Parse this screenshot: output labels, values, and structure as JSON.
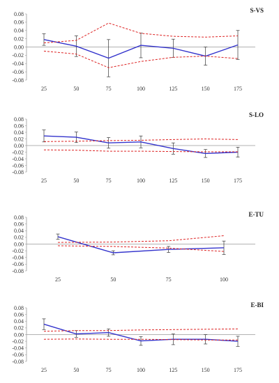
{
  "colors": {
    "mean_line": "#3333cc",
    "bounds": "#dd2222",
    "error_bar": "#333333",
    "axis": "#999999"
  },
  "chart_data": [
    {
      "type": "line",
      "title": "S-VS",
      "x": [
        25,
        50,
        75,
        100,
        125,
        150,
        175
      ],
      "ylim": [
        -0.08,
        0.08
      ],
      "yticks": [
        "0.08",
        "0.06",
        "0.04",
        "0.02",
        "0.00",
        "-0.02",
        "-0.04",
        "-0.06",
        "-0.08"
      ],
      "series": [
        {
          "role": "mean",
          "values": [
            0.018,
            0.002,
            -0.027,
            0.004,
            -0.003,
            -0.022,
            0.005
          ],
          "errors": [
            0.014,
            0.025,
            0.045,
            0.03,
            0.022,
            0.022,
            0.035
          ]
        },
        {
          "role": "upper",
          "values": [
            0.01,
            0.016,
            0.058,
            0.033,
            0.026,
            0.024,
            0.027
          ]
        },
        {
          "role": "lower",
          "values": [
            -0.01,
            -0.017,
            -0.05,
            -0.035,
            -0.025,
            -0.022,
            -0.028
          ]
        }
      ]
    },
    {
      "type": "line",
      "title": "S-LO",
      "x": [
        25,
        50,
        75,
        100,
        125,
        150,
        175
      ],
      "ylim": [
        -0.08,
        0.08
      ],
      "yticks": [
        "0.08",
        "0.06",
        "0.04",
        "0.02",
        "0.00",
        "-0.02",
        "-0.04",
        "-0.06",
        "-0.08"
      ],
      "series": [
        {
          "role": "mean",
          "values": [
            0.029,
            0.025,
            0.008,
            0.011,
            -0.009,
            -0.024,
            -0.02
          ],
          "errors": [
            0.018,
            0.016,
            0.016,
            0.018,
            0.017,
            0.012,
            0.015
          ]
        },
        {
          "role": "upper",
          "values": [
            0.012,
            0.013,
            0.015,
            0.016,
            0.018,
            0.02,
            0.018
          ]
        },
        {
          "role": "lower",
          "values": [
            -0.013,
            -0.014,
            -0.017,
            -0.017,
            -0.018,
            -0.019,
            -0.019
          ]
        }
      ]
    },
    {
      "type": "line",
      "title": "E-TU",
      "x": [
        25,
        50,
        75,
        100
      ],
      "ylim": [
        -0.08,
        0.08
      ],
      "yticks": [
        "0.08",
        "0.06",
        "0.04",
        "0.02",
        "0.00",
        "-0.02",
        "-0.04",
        "-0.06",
        "-0.08"
      ],
      "series": [
        {
          "role": "mean",
          "values": [
            0.022,
            -0.026,
            -0.016,
            -0.011
          ],
          "errors": [
            0.008,
            0.006,
            0.009,
            0.02
          ]
        },
        {
          "role": "upper",
          "values": [
            0.005,
            0.006,
            0.01,
            0.025
          ]
        },
        {
          "role": "lower",
          "values": [
            -0.005,
            -0.007,
            -0.012,
            -0.022
          ]
        }
      ]
    },
    {
      "type": "line",
      "title": "E-BI",
      "x": [
        25,
        50,
        75,
        100,
        125,
        150,
        175
      ],
      "ylim": [
        -0.08,
        0.08
      ],
      "yticks": [
        "0.08",
        "0.06",
        "0.04",
        "0.02",
        "0.00",
        "-0.02",
        "-0.04",
        "-0.06",
        "-0.08"
      ],
      "series": [
        {
          "role": "mean",
          "values": [
            0.031,
            0.002,
            0.006,
            -0.019,
            -0.014,
            -0.014,
            -0.02
          ],
          "errors": [
            0.016,
            0.01,
            0.011,
            0.013,
            0.016,
            0.014,
            0.015
          ]
        },
        {
          "role": "upper",
          "values": [
            0.01,
            0.012,
            0.012,
            0.014,
            0.015,
            0.016,
            0.017
          ]
        },
        {
          "role": "lower",
          "values": [
            -0.014,
            -0.013,
            -0.014,
            -0.014,
            -0.015,
            -0.016,
            -0.016
          ]
        }
      ]
    }
  ]
}
